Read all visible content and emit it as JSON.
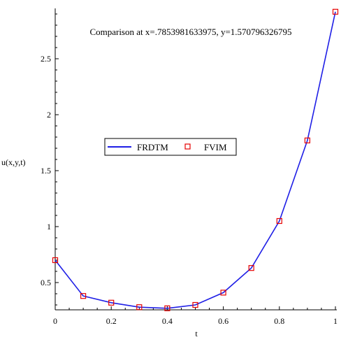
{
  "chart_data": {
    "type": "line",
    "title": "Comparison at x=.7853981633975, y=1.570796326795",
    "xlabel": "t",
    "ylabel": "u(x,y,t)",
    "xlim": [
      0,
      1
    ],
    "ylim": [
      0.25,
      3.0
    ],
    "xticks": [
      "0",
      "0.2",
      "0.4",
      "0.6",
      "0.8",
      "1"
    ],
    "yticks": [
      "0.5",
      "1",
      "1.5",
      "2",
      "2.5"
    ],
    "grid": false,
    "legend_placement": "center-left",
    "x": [
      0,
      0.1,
      0.2,
      0.3,
      0.4,
      0.5,
      0.6,
      0.7,
      0.8,
      0.9,
      1.0
    ],
    "series": [
      {
        "name": "FRDTM",
        "style": "line",
        "color": "#1f1fe6",
        "values": [
          0.7,
          0.38,
          0.32,
          0.28,
          0.27,
          0.3,
          0.41,
          0.63,
          1.05,
          1.77,
          2.92
        ]
      },
      {
        "name": "FVIM",
        "style": "square-marker",
        "color": "#e60000",
        "values": [
          0.7,
          0.38,
          0.32,
          0.28,
          0.27,
          0.3,
          0.41,
          0.63,
          1.05,
          1.77,
          2.92
        ]
      }
    ]
  }
}
